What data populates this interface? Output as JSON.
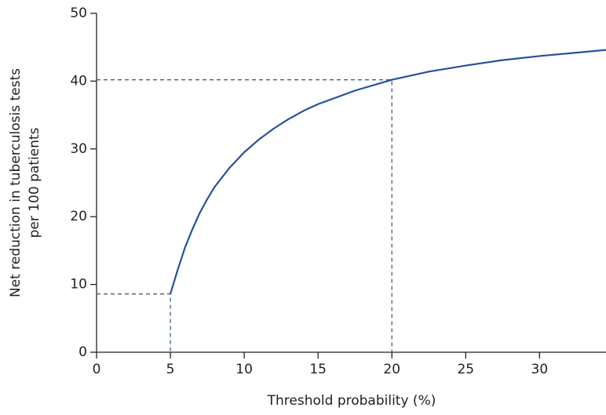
{
  "chart_data": {
    "type": "line",
    "xlabel": "Threshold probability (%)",
    "ylabel": [
      "Net reduction in tuberculosis tests",
      "per 100 patients"
    ],
    "x": [
      5,
      5.5,
      6,
      6.5,
      7,
      7.5,
      8,
      9,
      10,
      11,
      12,
      13,
      14,
      15,
      17.5,
      20,
      22.5,
      25,
      27.5,
      30,
      32.5,
      34.5
    ],
    "values": [
      8.6,
      12.2,
      15.5,
      18.2,
      20.6,
      22.6,
      24.4,
      27.2,
      29.5,
      31.4,
      33.0,
      34.4,
      35.6,
      36.6,
      38.6,
      40.2,
      41.4,
      42.3,
      43.1,
      43.7,
      44.2,
      44.6
    ],
    "color": "#2850a0",
    "reference_points": [
      {
        "x": 5,
        "y": 8.6
      },
      {
        "x": 20,
        "y": 40.2
      }
    ],
    "xlim": [
      0,
      34.5
    ],
    "xticks": [
      0,
      5,
      10,
      15,
      20,
      25,
      30
    ],
    "ylim": [
      0,
      50
    ],
    "yticks": [
      0,
      10,
      20,
      30,
      40,
      50
    ],
    "grid": false
  }
}
